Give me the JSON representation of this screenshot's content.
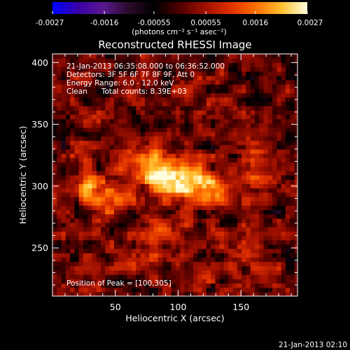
{
  "chart_data": {
    "type": "heatmap",
    "title": "Reconstructed RHESSI Image",
    "xlabel": "Heliocentric X (arcsec)",
    "ylabel": "Heliocentric Y (arcsec)",
    "xlim": [
      0,
      195
    ],
    "ylim": [
      211,
      407
    ],
    "x_ticks": [
      50,
      100,
      150
    ],
    "y_ticks": [
      250,
      300,
      350,
      400
    ],
    "colorbar": {
      "range": [
        -0.0027,
        0.0027
      ],
      "tick_values": [
        -0.0027,
        -0.0016,
        -0.00055,
        0.00055,
        0.0016,
        0.0027
      ],
      "tick_labels": [
        "-0.0027",
        "-0.0016",
        "-0.00055",
        "0.00055",
        "0.0016",
        "0.0027"
      ],
      "unit_label": "(photons cm⁻² s⁻¹ asec⁻²)",
      "colors": [
        "#0000ff",
        "#3a00a8",
        "#5a1890",
        "#2a0a2a",
        "#000000",
        "#500000",
        "#a01000",
        "#e03000",
        "#ff7000",
        "#ffc030",
        "#ffffe0"
      ]
    },
    "peak": {
      "x": 100,
      "y": 305
    },
    "sources": [
      {
        "x": 100,
        "y": 305,
        "sx": 14,
        "sy": 9,
        "amp": 0.0027
      },
      {
        "x": 30,
        "y": 300,
        "sx": 7,
        "sy": 8,
        "amp": 0.0019
      },
      {
        "x": 78,
        "y": 320,
        "sx": 13,
        "sy": 12,
        "amp": 0.0012
      },
      {
        "x": 125,
        "y": 298,
        "sx": 10,
        "sy": 8,
        "amp": 0.0015
      },
      {
        "x": 48,
        "y": 290,
        "sx": 9,
        "sy": 11,
        "amp": 0.001
      },
      {
        "x": 95,
        "y": 270,
        "sx": 16,
        "sy": 10,
        "amp": 0.0007
      },
      {
        "x": 160,
        "y": 310,
        "sx": 10,
        "sy": 20,
        "amp": 0.0008
      },
      {
        "x": 70,
        "y": 245,
        "sx": 22,
        "sy": 10,
        "amp": 0.0006
      },
      {
        "x": 150,
        "y": 255,
        "sx": 12,
        "sy": 12,
        "amp": 0.0007
      }
    ],
    "annotations": [
      "21-Jan-2013 06:35:08.000 to 06:36:52.000",
      "Detectors: 3F 5F 6F 7F 8F 9F, Att 0",
      "Energy Range: 6.0 - 12.0 keV",
      "Clean      Total counts: 8.39E+03"
    ],
    "peak_label": "Position of Peak = [100,305]"
  },
  "footer_timestamp": "21-Jan-2013 02:10"
}
